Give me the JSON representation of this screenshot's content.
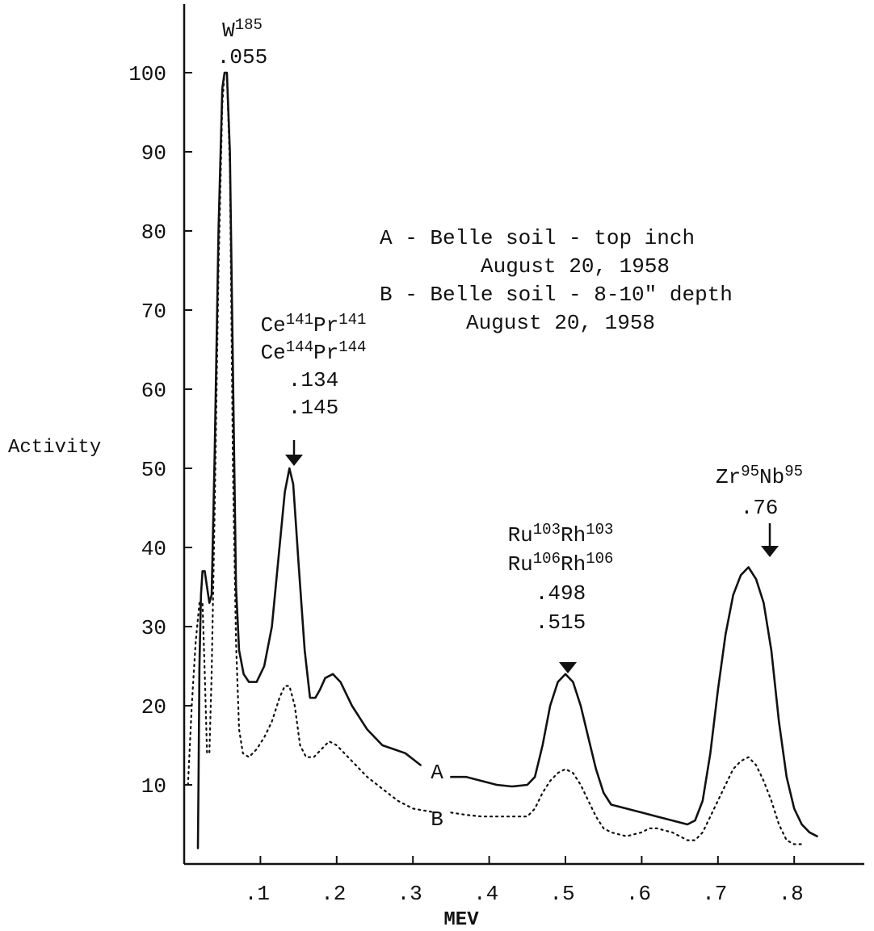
{
  "chart_data": {
    "type": "line",
    "xlabel": "MEV",
    "ylabel": "Activity",
    "xlim": [
      0,
      0.87
    ],
    "ylim": [
      0,
      105
    ],
    "x_ticks": [
      0.1,
      0.2,
      0.3,
      0.4,
      0.5,
      0.6,
      0.7,
      0.8
    ],
    "x_tick_labels": [
      ".1",
      ".2",
      ".3",
      ".4",
      ".5",
      ".6",
      ".7",
      ".8"
    ],
    "y_ticks": [
      10,
      20,
      30,
      40,
      50,
      60,
      70,
      80,
      90,
      100
    ],
    "grid": false,
    "series": [
      {
        "name": "A",
        "style": "solid",
        "points": [
          [
            0.018,
            2
          ],
          [
            0.019,
            12
          ],
          [
            0.02,
            25
          ],
          [
            0.022,
            34
          ],
          [
            0.024,
            37
          ],
          [
            0.027,
            37
          ],
          [
            0.03,
            35
          ],
          [
            0.033,
            33
          ],
          [
            0.036,
            34
          ],
          [
            0.04,
            52
          ],
          [
            0.045,
            80
          ],
          [
            0.05,
            98
          ],
          [
            0.053,
            100
          ],
          [
            0.056,
            100
          ],
          [
            0.06,
            90
          ],
          [
            0.065,
            55
          ],
          [
            0.068,
            35
          ],
          [
            0.072,
            27
          ],
          [
            0.078,
            24
          ],
          [
            0.085,
            23
          ],
          [
            0.095,
            23
          ],
          [
            0.105,
            25
          ],
          [
            0.115,
            30
          ],
          [
            0.125,
            40
          ],
          [
            0.132,
            47
          ],
          [
            0.138,
            50
          ],
          [
            0.143,
            48
          ],
          [
            0.15,
            38
          ],
          [
            0.158,
            27
          ],
          [
            0.165,
            21
          ],
          [
            0.172,
            21
          ],
          [
            0.178,
            22
          ],
          [
            0.185,
            23.5
          ],
          [
            0.195,
            24
          ],
          [
            0.205,
            23
          ],
          [
            0.22,
            20
          ],
          [
            0.24,
            17
          ],
          [
            0.26,
            15
          ],
          [
            0.275,
            14.5
          ],
          [
            0.29,
            14
          ],
          [
            0.31,
            12.5
          ]
        ],
        "points_2": [
          [
            0.35,
            11
          ],
          [
            0.37,
            11
          ],
          [
            0.39,
            10.5
          ],
          [
            0.41,
            10
          ],
          [
            0.43,
            9.8
          ],
          [
            0.45,
            10
          ],
          [
            0.46,
            11
          ],
          [
            0.47,
            15
          ],
          [
            0.48,
            20
          ],
          [
            0.49,
            23
          ],
          [
            0.5,
            24
          ],
          [
            0.51,
            23
          ],
          [
            0.52,
            20
          ],
          [
            0.53,
            16
          ],
          [
            0.54,
            12
          ],
          [
            0.55,
            9
          ],
          [
            0.56,
            7.5
          ],
          [
            0.58,
            7
          ],
          [
            0.6,
            6.5
          ],
          [
            0.62,
            6
          ],
          [
            0.64,
            5.5
          ],
          [
            0.66,
            5
          ],
          [
            0.67,
            5.5
          ],
          [
            0.68,
            8
          ],
          [
            0.69,
            14
          ],
          [
            0.7,
            22
          ],
          [
            0.71,
            29
          ],
          [
            0.72,
            34
          ],
          [
            0.73,
            36.5
          ],
          [
            0.74,
            37.5
          ],
          [
            0.75,
            36
          ],
          [
            0.76,
            33
          ],
          [
            0.77,
            27
          ],
          [
            0.78,
            18
          ],
          [
            0.79,
            11
          ],
          [
            0.8,
            7
          ],
          [
            0.81,
            5
          ],
          [
            0.82,
            4
          ],
          [
            0.83,
            3.5
          ]
        ]
      },
      {
        "name": "B",
        "style": "dotted",
        "points": [
          [
            0.005,
            10
          ],
          [
            0.01,
            20
          ],
          [
            0.015,
            28
          ],
          [
            0.02,
            33
          ],
          [
            0.024,
            33
          ],
          [
            0.027,
            24
          ],
          [
            0.03,
            14
          ],
          [
            0.033,
            14
          ],
          [
            0.036,
            24
          ],
          [
            0.04,
            45
          ],
          [
            0.045,
            75
          ],
          [
            0.05,
            96
          ],
          [
            0.053,
            100
          ],
          [
            0.056,
            100
          ],
          [
            0.06,
            88
          ],
          [
            0.064,
            50
          ],
          [
            0.068,
            28
          ],
          [
            0.072,
            17
          ],
          [
            0.077,
            14
          ],
          [
            0.085,
            13.5
          ],
          [
            0.095,
            14.5
          ],
          [
            0.105,
            16
          ],
          [
            0.115,
            18
          ],
          [
            0.125,
            21
          ],
          [
            0.132,
            22.5
          ],
          [
            0.138,
            22.5
          ],
          [
            0.145,
            20
          ],
          [
            0.152,
            15
          ],
          [
            0.16,
            13.5
          ],
          [
            0.17,
            13.5
          ],
          [
            0.18,
            14.5
          ],
          [
            0.19,
            15.5
          ],
          [
            0.2,
            15
          ],
          [
            0.22,
            13
          ],
          [
            0.24,
            11
          ],
          [
            0.26,
            9.5
          ],
          [
            0.28,
            8
          ],
          [
            0.3,
            7
          ],
          [
            0.33,
            6.5
          ]
        ],
        "points_2": [
          [
            0.35,
            6.5
          ],
          [
            0.37,
            6.2
          ],
          [
            0.39,
            6
          ],
          [
            0.41,
            6
          ],
          [
            0.43,
            6
          ],
          [
            0.45,
            6
          ],
          [
            0.46,
            7
          ],
          [
            0.47,
            9
          ],
          [
            0.48,
            10.5
          ],
          [
            0.49,
            11.5
          ],
          [
            0.5,
            12
          ],
          [
            0.51,
            11.5
          ],
          [
            0.52,
            10
          ],
          [
            0.53,
            8
          ],
          [
            0.54,
            6
          ],
          [
            0.55,
            4.5
          ],
          [
            0.56,
            4
          ],
          [
            0.58,
            3.5
          ],
          [
            0.6,
            4
          ],
          [
            0.61,
            4.5
          ],
          [
            0.62,
            4.5
          ],
          [
            0.64,
            4
          ],
          [
            0.66,
            3
          ],
          [
            0.67,
            3
          ],
          [
            0.68,
            4
          ],
          [
            0.69,
            6
          ],
          [
            0.7,
            8
          ],
          [
            0.71,
            10
          ],
          [
            0.72,
            12
          ],
          [
            0.73,
            13
          ],
          [
            0.74,
            13.5
          ],
          [
            0.75,
            12.5
          ],
          [
            0.76,
            10.5
          ],
          [
            0.77,
            8
          ],
          [
            0.78,
            5
          ],
          [
            0.79,
            3
          ],
          [
            0.8,
            2.5
          ],
          [
            0.81,
            2.5
          ]
        ]
      }
    ],
    "series_labels": [
      "A",
      "B"
    ],
    "annotations": [
      {
        "id": "w185",
        "lines": [
          [
            "W",
            "185"
          ],
          [
            ".055"
          ]
        ]
      },
      {
        "id": "ce",
        "lines": [
          [
            "Ce",
            "141",
            "Pr",
            "141"
          ],
          [
            "Ce",
            "144",
            "Pr",
            "144"
          ],
          [
            ".134"
          ],
          [
            ".145"
          ]
        ]
      },
      {
        "id": "ru",
        "lines": [
          [
            "Ru",
            "103",
            "Rh",
            "103"
          ],
          [
            "Ru",
            "106",
            "Rh",
            "106"
          ],
          [
            ".498"
          ],
          [
            ".515"
          ]
        ]
      },
      {
        "id": "zr",
        "lines": [
          [
            "Zr",
            "95",
            "Nb",
            "95"
          ],
          [
            ".76"
          ]
        ]
      }
    ],
    "legend": [
      "A - Belle soil - top inch",
      "August 20, 1958",
      "B - Belle soil - 8-10\" depth",
      "August 20, 1958"
    ]
  }
}
